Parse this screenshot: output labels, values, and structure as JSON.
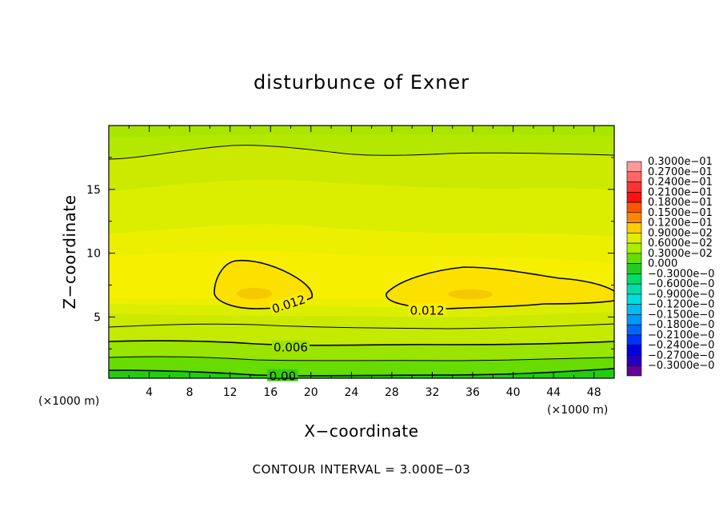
{
  "chart_data": {
    "type": "heatmap",
    "title": "disturbunce of Exner",
    "xlabel": "X−coordinate",
    "ylabel": "Z−coordinate",
    "x_unit_label": "(×1000 m)",
    "y_unit_label": "(×1000 m)",
    "x_ticks": [
      4,
      8,
      12,
      16,
      20,
      24,
      28,
      32,
      36,
      40,
      44,
      48
    ],
    "y_ticks": [
      5,
      10,
      15
    ],
    "xlim": [
      0,
      50
    ],
    "ylim": [
      0.2,
      20
    ],
    "footer": "CONTOUR INTERVAL = 3.000E−03",
    "contour_interval": 0.003,
    "contour_labels": [
      {
        "text": "0.012",
        "x": 17.8,
        "y": 6.0,
        "rotation": -18
      },
      {
        "text": "0.012",
        "x": 31.5,
        "y": 5.5,
        "rotation": 0
      },
      {
        "text": "0.006",
        "x": 18,
        "y": 2.6,
        "rotation": 0
      },
      {
        "text": "0.00",
        "x": 17.2,
        "y": 0.35,
        "rotation": 0
      }
    ],
    "colorbar": {
      "labels": [
        "0.3000e−01",
        "0.2700e−01",
        "0.2400e−01",
        "0.2100e−01",
        "0.1800e−01",
        "0.1500e−01",
        "0.1200e−01",
        "0.9000e−02",
        "0.6000e−02",
        "0.3000e−02",
        "0.000",
        "−0.3000e−0",
        "−0.6000e−0",
        "−0.9000e−0",
        "−0.1200e−0",
        "−0.1500e−0",
        "−0.1800e−0",
        "−0.2100e−0",
        "−0.2400e−0",
        "−0.2700e−0",
        "−0.3000e−0"
      ],
      "colors": [
        "#ff9999",
        "#ff6666",
        "#ff3333",
        "#ff1111",
        "#ff5500",
        "#ff8800",
        "#ffcc00",
        "#ddee00",
        "#aaee00",
        "#66dd00",
        "#22cc22",
        "#00dd66",
        "#00ddaa",
        "#00dddd",
        "#00bbee",
        "#0099ff",
        "#0066ff",
        "#0033ff",
        "#0000dd",
        "#2200bb",
        "#660099"
      ]
    },
    "field_colors": [
      "#00cc33",
      "#33dd00",
      "#77e400",
      "#a8ea00",
      "#cce600",
      "#e4ee00",
      "#f5f000",
      "#fbe200"
    ]
  }
}
